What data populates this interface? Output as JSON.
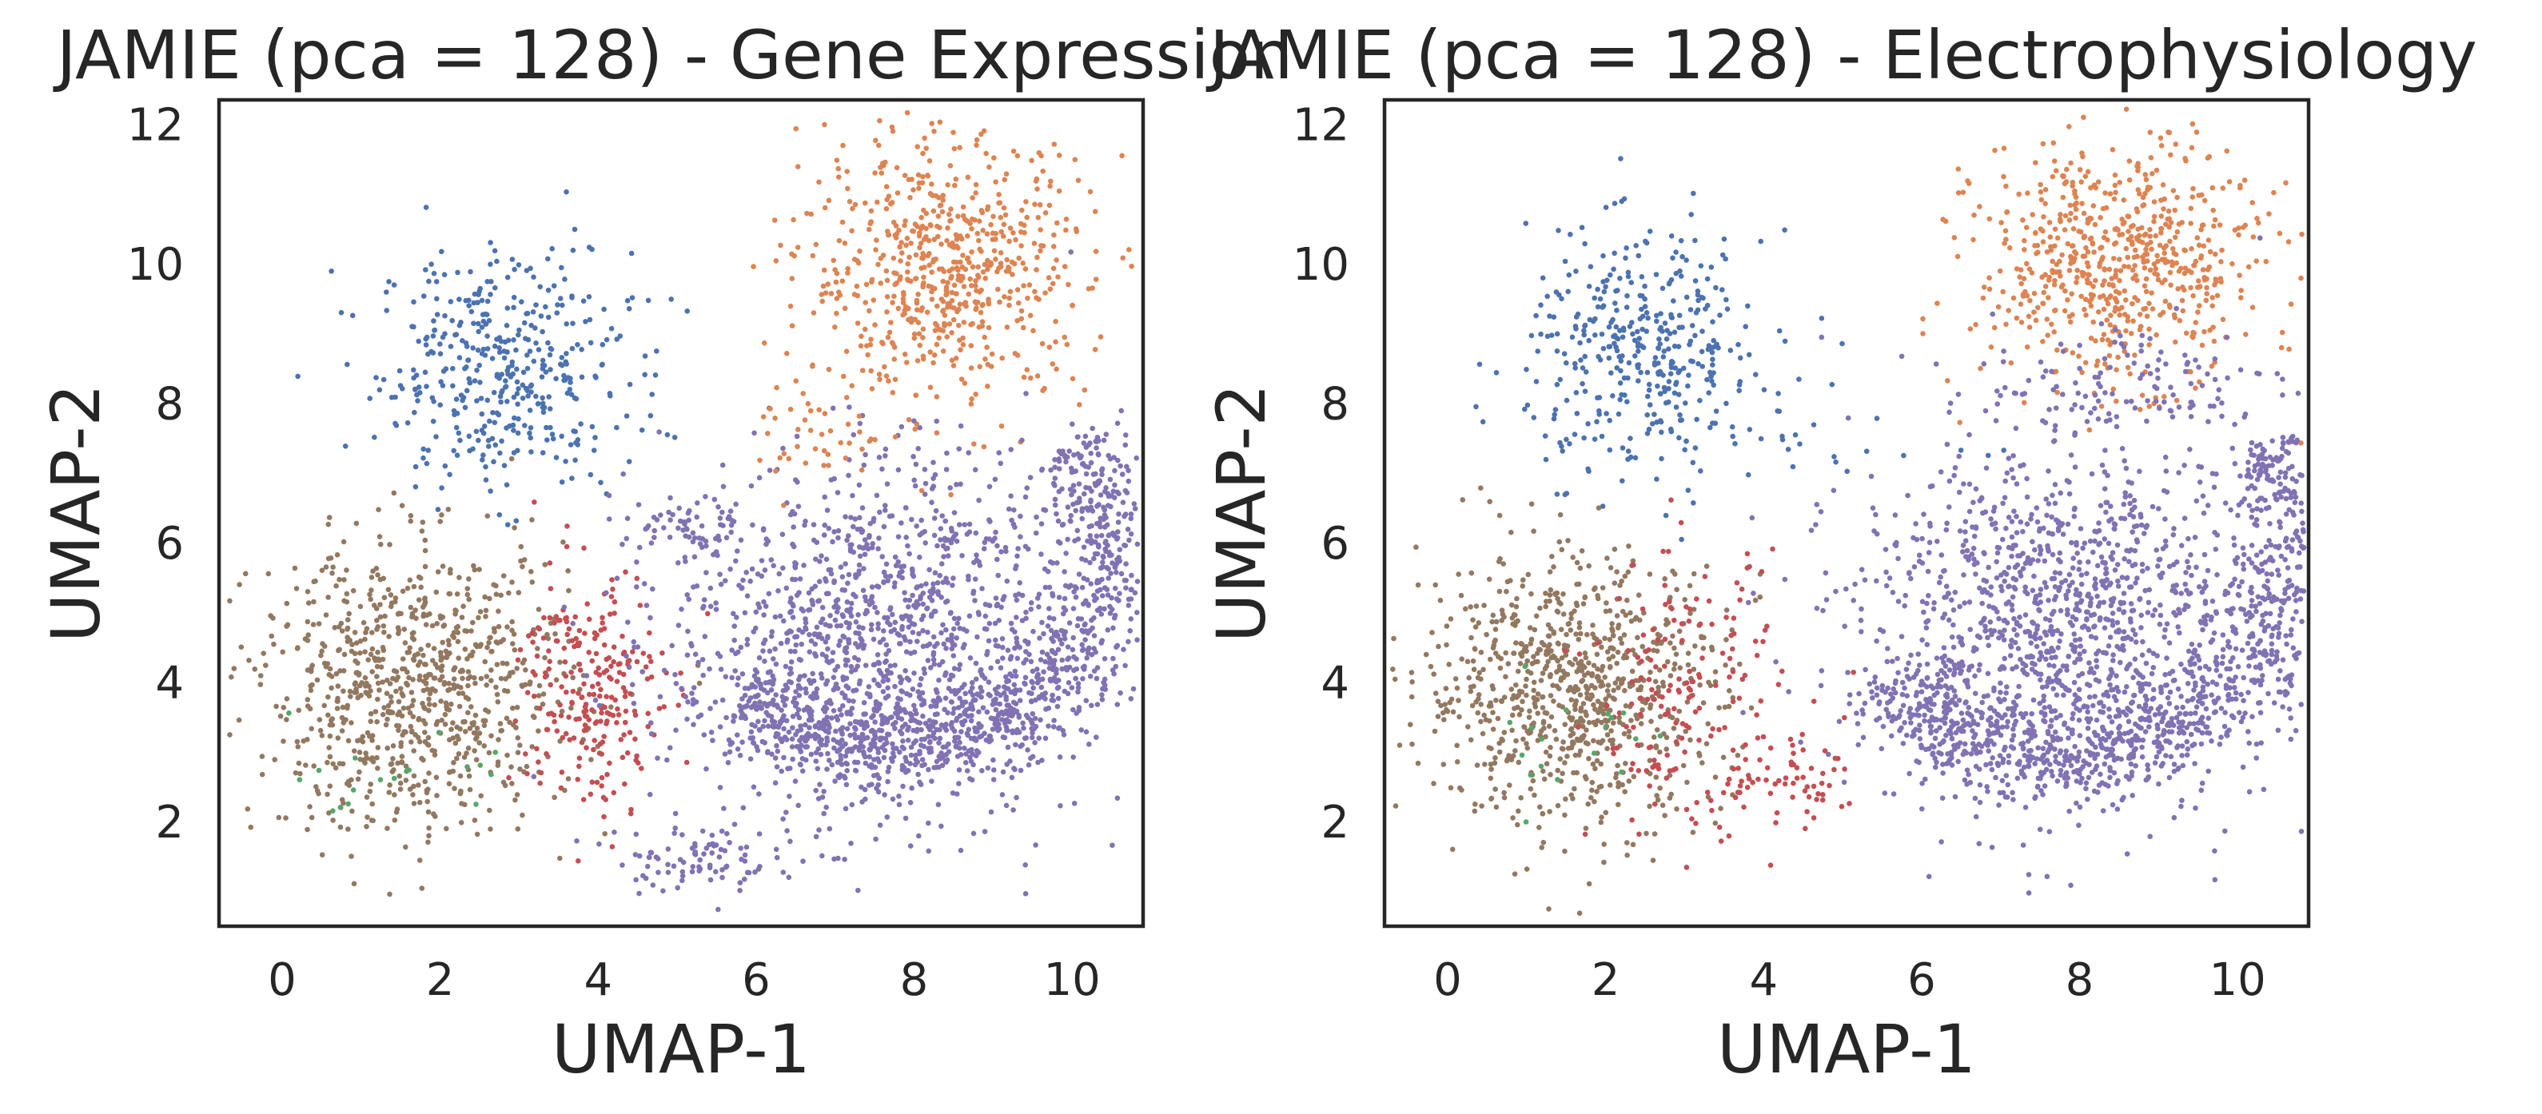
{
  "chart_data": [
    {
      "type": "scatter",
      "title": "JAMIE (pca = 128) - Gene Expression",
      "xlabel": "UMAP-1",
      "ylabel": "UMAP-2",
      "xlim": [
        -0.8,
        10.9
      ],
      "ylim": [
        0.5,
        12.35
      ],
      "xticks": [
        "0",
        "2",
        "4",
        "6",
        "8",
        "10"
      ],
      "yticks": [
        "2",
        "4",
        "6",
        "8",
        "10",
        "12"
      ],
      "grid": false,
      "point_size": "small",
      "clusters": [
        {
          "color": "#4c72b0",
          "shape": "blob",
          "cx": 2.8,
          "cy": 8.5,
          "sx": 0.8,
          "sy": 0.85,
          "n": 420
        },
        {
          "color": "#dd8452",
          "shape": "blob",
          "cx": 8.4,
          "cy": 9.9,
          "sx": 0.9,
          "sy": 0.95,
          "n": 650
        },
        {
          "color": "#937860",
          "shape": "blob",
          "cx": 1.7,
          "cy": 3.9,
          "sx": 1.0,
          "sy": 1.0,
          "n": 850
        },
        {
          "color": "#c44e52",
          "shape": "blob",
          "cx": 3.9,
          "cy": 3.9,
          "sx": 0.45,
          "sy": 0.9,
          "n": 240
        },
        {
          "color": "#55a868",
          "shape": "blob",
          "cx": 1.5,
          "cy": 2.6,
          "sx": 0.6,
          "sy": 0.3,
          "n": 18
        },
        {
          "color": "#8172b3",
          "shape": "blob",
          "cx": 7.5,
          "cy": 4.6,
          "sx": 1.3,
          "sy": 1.3,
          "n": 1300
        },
        {
          "color": "#8172b3",
          "shape": "arc",
          "cx": 7.7,
          "cy": 5.9,
          "r": 2.8,
          "t0": -2.3,
          "t1": 0.6,
          "spread": 0.35,
          "n": 1000
        },
        {
          "color": "#8172b3",
          "shape": "blob",
          "cx": 5.2,
          "cy": 1.5,
          "sx": 0.5,
          "sy": 0.25,
          "n": 90
        },
        {
          "color": "#8172b3",
          "shape": "blob",
          "cx": 5.1,
          "cy": 6.2,
          "sx": 0.4,
          "sy": 0.25,
          "n": 60
        },
        {
          "color": "#dd8452",
          "shape": "blob",
          "cx": 6.8,
          "cy": 7.6,
          "sx": 0.4,
          "sy": 0.45,
          "n": 40
        }
      ]
    },
    {
      "type": "scatter",
      "title": "JAMIE (pca = 128) - Electrophysiology",
      "xlabel": "UMAP-1",
      "ylabel": "UMAP-2",
      "xlim": [
        -0.8,
        10.9
      ],
      "ylim": [
        0.5,
        12.35
      ],
      "xticks": [
        "0",
        "2",
        "4",
        "6",
        "8",
        "10"
      ],
      "yticks": [
        "2",
        "4",
        "6",
        "8",
        "10",
        "12"
      ],
      "grid": false,
      "point_size": "small",
      "clusters": [
        {
          "color": "#4c72b0",
          "shape": "blob",
          "cx": 2.5,
          "cy": 8.7,
          "sx": 0.75,
          "sy": 0.85,
          "n": 400
        },
        {
          "color": "#4c72b0",
          "shape": "blob",
          "cx": 5.0,
          "cy": 7.6,
          "sx": 0.9,
          "sy": 0.6,
          "n": 20
        },
        {
          "color": "#dd8452",
          "shape": "blob",
          "cx": 8.5,
          "cy": 10.0,
          "sx": 0.9,
          "sy": 0.85,
          "n": 650
        },
        {
          "color": "#937860",
          "shape": "blob",
          "cx": 1.6,
          "cy": 3.9,
          "sx": 0.95,
          "sy": 0.95,
          "n": 850
        },
        {
          "color": "#c44e52",
          "shape": "blob",
          "cx": 3.0,
          "cy": 3.8,
          "sx": 0.6,
          "sy": 1.0,
          "n": 170
        },
        {
          "color": "#c44e52",
          "shape": "blob",
          "cx": 4.3,
          "cy": 2.5,
          "sx": 0.6,
          "sy": 0.3,
          "n": 60
        },
        {
          "color": "#55a868",
          "shape": "blob",
          "cx": 1.6,
          "cy": 3.2,
          "sx": 0.7,
          "sy": 0.6,
          "n": 18
        },
        {
          "color": "#8172b3",
          "shape": "blob",
          "cx": 7.8,
          "cy": 4.8,
          "sx": 1.3,
          "sy": 1.3,
          "n": 1300
        },
        {
          "color": "#8172b3",
          "shape": "arc",
          "cx": 7.7,
          "cy": 6.0,
          "r": 3.0,
          "t0": -2.45,
          "t1": 0.5,
          "spread": 0.35,
          "n": 1000
        },
        {
          "color": "#8172b3",
          "shape": "blob",
          "cx": 8.8,
          "cy": 8.3,
          "sx": 1.0,
          "sy": 0.5,
          "n": 120
        }
      ]
    }
  ]
}
